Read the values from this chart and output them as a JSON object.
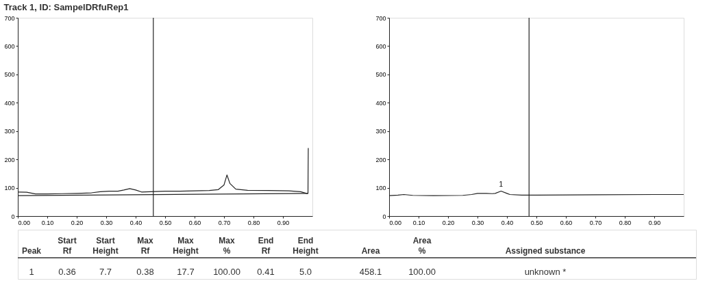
{
  "chart_data": [
    {
      "type": "line",
      "title": "Track 1, ID: SampelDRfuRep1",
      "xlim": [
        0,
        1.0
      ],
      "ylim": [
        0,
        700
      ],
      "xticks": [
        {
          "value": 0,
          "label": "0.00"
        },
        {
          "value": 0.1,
          "label": "0.10"
        },
        {
          "value": 0.2,
          "label": "0.20"
        },
        {
          "value": 0.3,
          "label": "0.30"
        },
        {
          "value": 0.4,
          "label": "0.40"
        },
        {
          "value": 0.5,
          "label": "0.50"
        },
        {
          "value": 0.6,
          "label": "0.60"
        },
        {
          "value": 0.7,
          "label": "0.70"
        },
        {
          "value": 0.8,
          "label": "0.80"
        },
        {
          "value": 0.9,
          "label": "0.90"
        }
      ],
      "yticks": [
        0,
        100,
        200,
        300,
        400,
        500,
        600,
        700
      ],
      "series": [
        {
          "color": "#222222",
          "x": [
            0,
            0.03,
            0.06,
            0.1,
            0.15,
            0.2,
            0.25,
            0.28,
            0.31,
            0.34,
            0.36,
            0.38,
            0.4,
            0.42,
            0.45,
            0.5,
            0.55,
            0.6,
            0.65,
            0.68,
            0.7,
            0.71,
            0.72,
            0.74,
            0.78,
            0.85,
            0.92,
            0.96,
            0.98,
            0.985,
            0.986
          ],
          "values": [
            85,
            84,
            78,
            78,
            79,
            80,
            82,
            86,
            88,
            88,
            92,
            97,
            92,
            85,
            86,
            88,
            88,
            89,
            90,
            93,
            110,
            145,
            115,
            95,
            91,
            90,
            89,
            86,
            80,
            80,
            240
          ]
        },
        {
          "color": "#222222",
          "x": [
            0,
            0.985
          ],
          "values": [
            72,
            80
          ]
        }
      ],
      "ref_lines": [
        {
          "axis": "x",
          "value": 0.46,
          "color": "#222222"
        }
      ]
    },
    {
      "type": "line",
      "xlim": [
        0,
        1.0
      ],
      "ylim": [
        0,
        700
      ],
      "xticks": [
        {
          "value": 0,
          "label": "0.00"
        },
        {
          "value": 0.1,
          "label": "0.10"
        },
        {
          "value": 0.2,
          "label": "0.20"
        },
        {
          "value": 0.3,
          "label": "0.30"
        },
        {
          "value": 0.4,
          "label": "0.40"
        },
        {
          "value": 0.5,
          "label": "0.50"
        },
        {
          "value": 0.6,
          "label": "0.60"
        },
        {
          "value": 0.7,
          "label": "0.70"
        },
        {
          "value": 0.8,
          "label": "0.80"
        },
        {
          "value": 0.9,
          "label": "0.90"
        }
      ],
      "yticks": [
        0,
        100,
        200,
        300,
        400,
        500,
        600,
        700
      ],
      "series": [
        {
          "color": "#222222",
          "x": [
            0,
            0.03,
            0.05,
            0.08,
            0.15,
            0.25,
            0.28,
            0.3,
            0.33,
            0.35,
            0.36,
            0.38,
            0.4,
            0.41,
            0.45,
            0.5,
            0.7,
            0.9,
            1.0
          ],
          "values": [
            72,
            74,
            76,
            73,
            72,
            73,
            76,
            80,
            80,
            79,
            80,
            88,
            80,
            76,
            74,
            74,
            75,
            76,
            76
          ]
        }
      ],
      "ref_lines": [
        {
          "axis": "x",
          "value": 0.475,
          "color": "#222222"
        }
      ],
      "annotations": [
        {
          "text": "1",
          "x": 0.38,
          "y": 100
        }
      ]
    },
    {
      "type": "other",
      "annotations": [
        "Peak",
        "Start\nRf",
        "Start\nHeight",
        "Max\nRf",
        "Max\nHeight",
        "Max\n%",
        "End\nRf",
        "End\nHeight",
        "Area",
        "Area\n%",
        "Assigned substance",
        "1",
        "0.36",
        "7.7",
        "0.38",
        "17.7",
        "100.00",
        "0.41",
        "5.0",
        "458.1",
        "100.00",
        "unknown *"
      ]
    }
  ]
}
